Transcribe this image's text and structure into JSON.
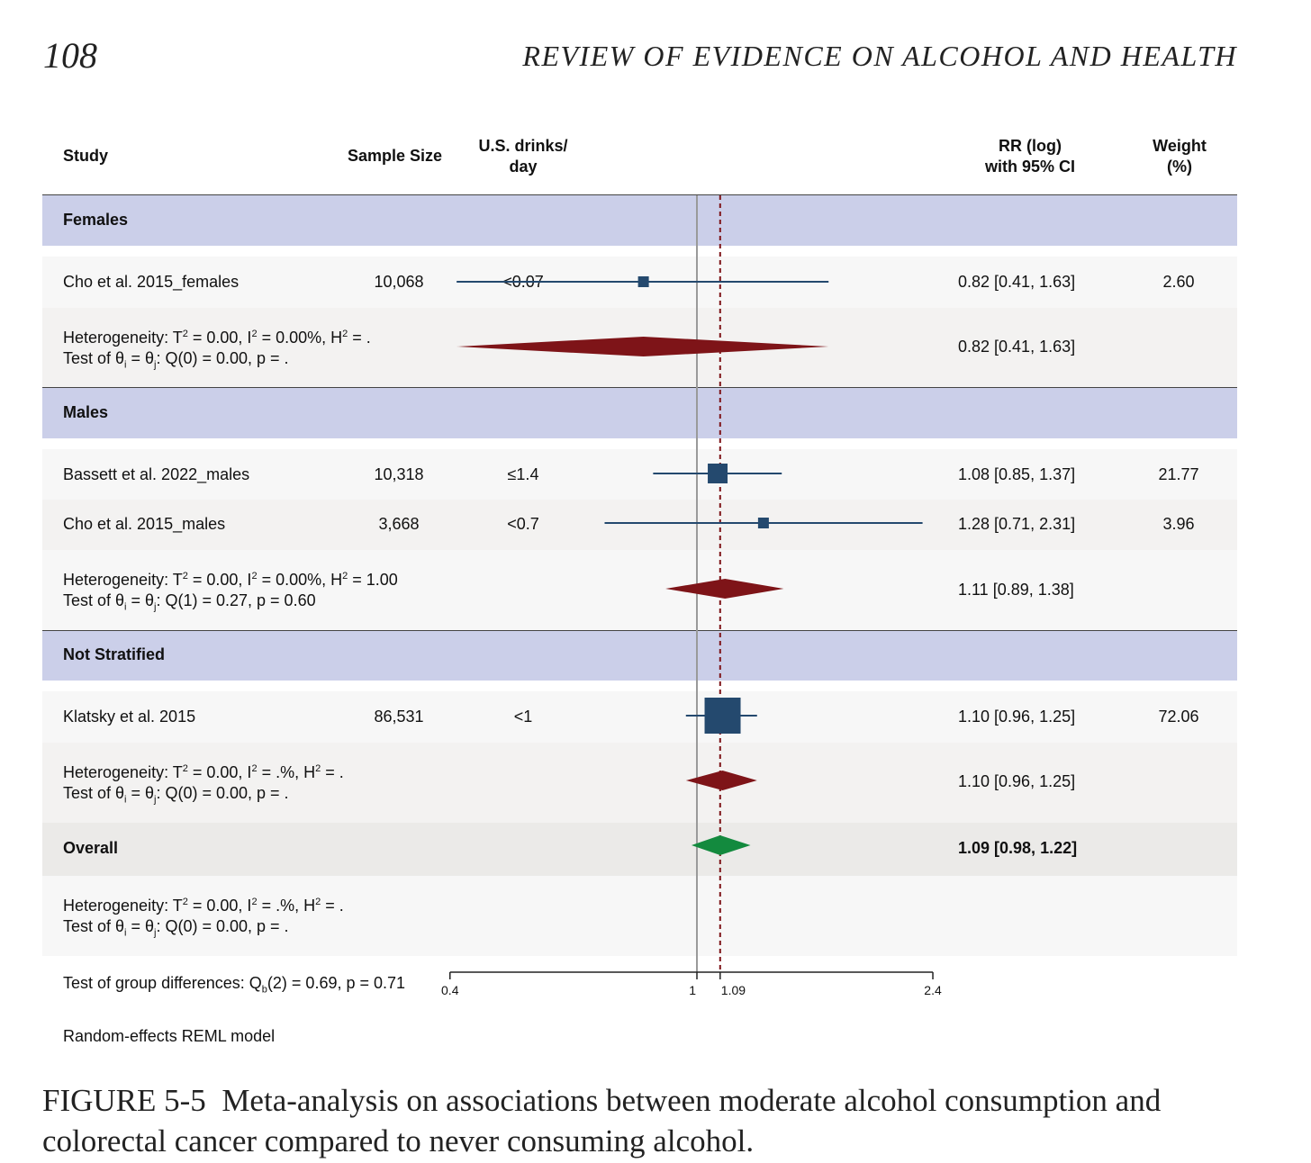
{
  "page_number": "108",
  "running_head": "REVIEW OF EVIDENCE ON ALCOHOL AND HEALTH",
  "header": {
    "study": "Study",
    "sample_size": "Sample Size",
    "drinks_line1": "U.S. drinks/",
    "drinks_line2": "day",
    "rr_line1": "RR (log)",
    "rr_line2": "with 95% CI",
    "weight_line1": "Weight",
    "weight_line2": "(%)"
  },
  "groups": {
    "females": {
      "label": "Females",
      "study": {
        "name": "Cho et al. 2015_females",
        "n": "10,068",
        "drinks": "<0.07",
        "ci_text": "0.82 [0.41, 1.63]",
        "weight": "2.60"
      },
      "het_line1": {
        "a": "Heterogeneity: T",
        "b": "2",
        "c": " = 0.00, I",
        "d": "2",
        "e": " = 0.00%, H",
        "f": "2",
        "g": " =  ."
      },
      "het_line2": {
        "a": "Test of θ",
        "b": "i",
        "c": " = θ",
        "d": "j",
        "e": ": Q(0) = 0.00, p =  ."
      },
      "summary_ci": "0.82 [0.41, 1.63]"
    },
    "males": {
      "label": "Males",
      "study1": {
        "name": "Bassett et al. 2022_males",
        "n": "10,318",
        "drinks": "≤1.4",
        "ci_text": "1.08 [0.85, 1.37]",
        "weight": "21.77"
      },
      "study2": {
        "name": "Cho et al. 2015_males",
        "n": "3,668",
        "drinks": "<0.7",
        "ci_text": "1.28 [0.71, 2.31]",
        "weight": "3.96"
      },
      "het_line1": {
        "a": "Heterogeneity: T",
        "b": "2",
        "c": " = 0.00, I",
        "d": "2",
        "e": " = 0.00%, H",
        "f": "2",
        "g": " = 1.00"
      },
      "het_line2": {
        "a": "Test of θ",
        "b": "i",
        "c": " = θ",
        "d": "j",
        "e": ": Q(1) = 0.27, p = 0.60"
      },
      "summary_ci": "1.11 [0.89, 1.38]"
    },
    "not_stratified": {
      "label": "Not Stratified",
      "study": {
        "name": "Klatsky et al. 2015",
        "n": "86,531",
        "drinks": "<1",
        "ci_text": "1.10 [0.96, 1.25]",
        "weight": "72.06"
      },
      "het_line1": {
        "a": "Heterogeneity: T",
        "b": "2",
        "c": " = 0.00, I",
        "d": "2",
        "e": " = .%, H",
        "f": "2",
        "g": " = ."
      },
      "het_line2": {
        "a": "Test of θ",
        "b": "i",
        "c": " = θ",
        "d": "j",
        "e": ": Q(0) = 0.00, p = ."
      },
      "summary_ci": "1.10 [0.96, 1.25]"
    }
  },
  "overall": {
    "label": "Overall",
    "ci_text": "1.09 [0.98, 1.22]",
    "het_line1": {
      "a": "Heterogeneity: T",
      "b": "2",
      "c": " = 0.00, I",
      "d": "2",
      "e": " = .%, H",
      "f": "2",
      "g": " = ."
    },
    "het_line2": {
      "a": "Test of θ",
      "b": "i",
      "c": " = θ",
      "d": "j",
      "e": ": Q(0) = 0.00, p = ."
    }
  },
  "group_diff": {
    "a": "Test of group differences: Q",
    "b": "b",
    "c": "(2) = 0.69, p = 0.71"
  },
  "model_note": "Random-effects REML model",
  "caption": {
    "figure_label": "FIGURE 5-5",
    "text": "Meta-analysis on associations between moderate alcohol consumption and colorectal cancer compared to never consuming alcohol."
  },
  "colors": {
    "study_marker": "#24496e",
    "group_diamond": "#7e1418",
    "overall_diamond": "#138a3e",
    "band_group": "#cbcfe9",
    "reference_line": "#9a9a9a",
    "overall_line": "#7e1418"
  },
  "chart_data": {
    "type": "forest",
    "scale": "log",
    "xlim": [
      0.4,
      2.4
    ],
    "xticks": [
      0.4,
      1,
      1.09,
      2.4
    ],
    "xtick_labels": [
      "0.4",
      "1",
      "1.09",
      "2.4"
    ],
    "null_value": 1,
    "overall_estimate": 1.09,
    "studies": [
      {
        "key": "cho_f",
        "name": "Cho et al. 2015_females",
        "rr": 0.82,
        "lo": 0.41,
        "hi": 1.63,
        "weight": 2.6
      },
      {
        "key": "bassett_m",
        "name": "Bassett et al. 2022_males",
        "rr": 1.08,
        "lo": 0.85,
        "hi": 1.37,
        "weight": 21.77
      },
      {
        "key": "cho_m",
        "name": "Cho et al. 2015_males",
        "rr": 1.28,
        "lo": 0.71,
        "hi": 2.31,
        "weight": 3.96
      },
      {
        "key": "klatsky",
        "name": "Klatsky et al. 2015",
        "rr": 1.1,
        "lo": 0.96,
        "hi": 1.25,
        "weight": 72.06
      }
    ],
    "subgroup_summaries": [
      {
        "key": "females",
        "rr": 0.82,
        "lo": 0.41,
        "hi": 1.63
      },
      {
        "key": "males",
        "rr": 1.11,
        "lo": 0.89,
        "hi": 1.38
      },
      {
        "key": "not_stratified",
        "rr": 1.1,
        "lo": 0.96,
        "hi": 1.25
      }
    ],
    "overall": {
      "rr": 1.09,
      "lo": 0.98,
      "hi": 1.22
    }
  }
}
